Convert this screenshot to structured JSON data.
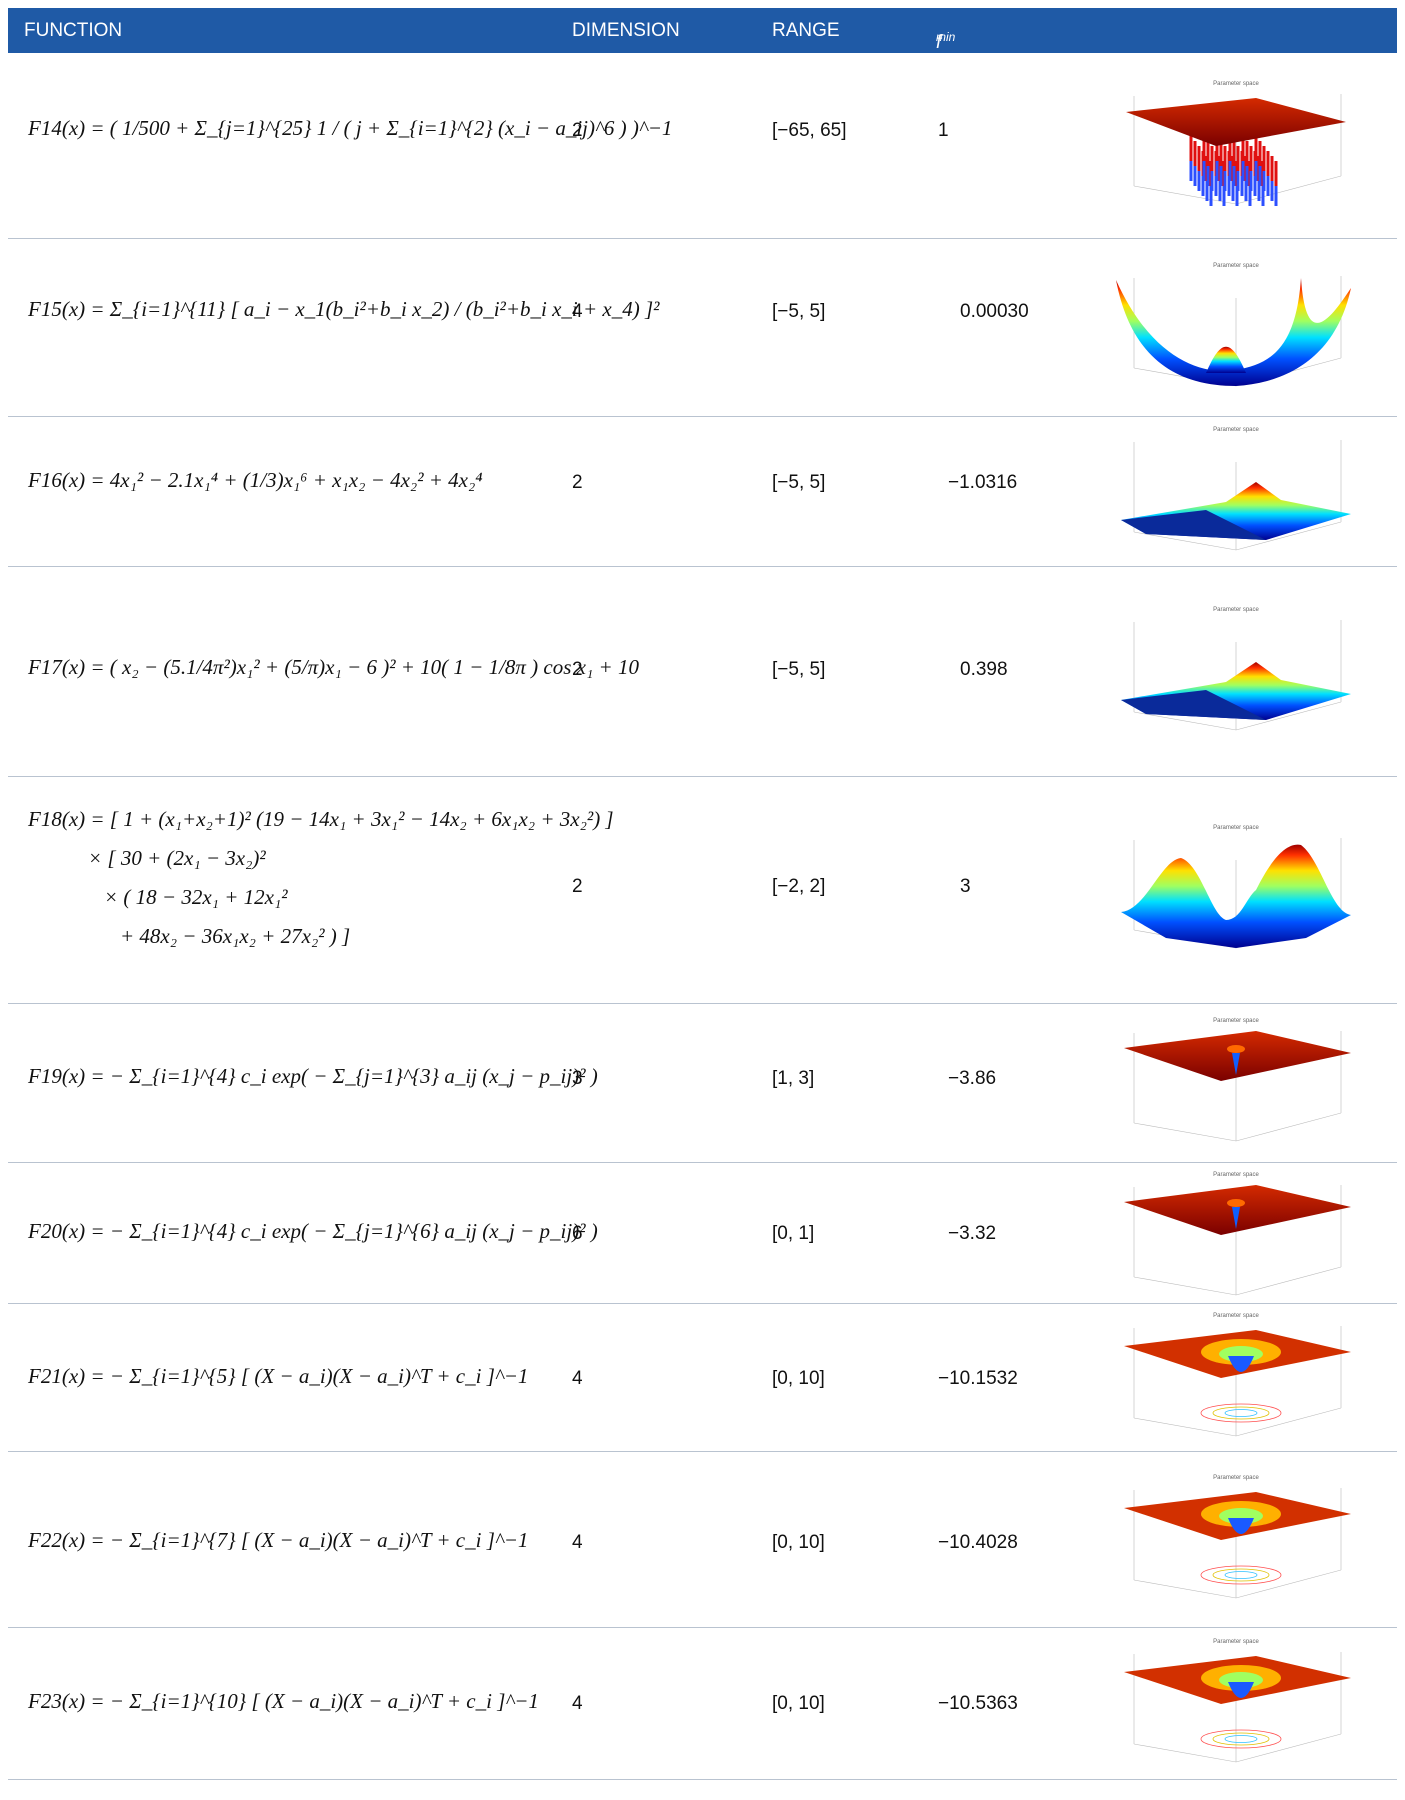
{
  "header": {
    "function": "FUNCTION",
    "dimension": "DIMENSION",
    "range": "RANGE",
    "fmin_base": "f",
    "fmin_sub": "min"
  },
  "plot_title": "Parameter space",
  "rows": [
    {
      "name": "F14(x)",
      "formula": "= ( 1/500 + Σ_{j=1}^{25} 1 / ( j + Σ_{i=1}^{2} (x_i − a_ij)^6 ) )^−1",
      "dimension": "2",
      "range": "[−65, 65]",
      "fmin": "1",
      "plot": "flat-spikes"
    },
    {
      "name": "F15(x)",
      "formula": "= Σ_{i=1}^{11} [ a_i − x_1(b_i²+b_i x_2) / (b_i²+b_i x_i + x_4) ]²",
      "dimension": "4",
      "range": "[−5, 5]",
      "fmin": "0.00030",
      "plot": "bowl"
    },
    {
      "name": "F16(x)",
      "formula": "= 4x₁² − 2.1x₁⁴ + (1/3)x₁⁶ + x₁x₂ − 4x₂² + 4x₂⁴",
      "dimension": "2",
      "range": "[−5, 5]",
      "fmin": "−1.0316",
      "plot": "low-ridge"
    },
    {
      "name": "F17(x)",
      "formula": "= ( x₂ − (5.1/4π²)x₁² + (5/π)x₁ − 6 )² + 10( 1 − 1/8π ) cos x₁ + 10",
      "dimension": "2",
      "range": "[−5, 5]",
      "fmin": "0.398",
      "plot": "low-ridge"
    },
    {
      "name": "F18(x)",
      "formula": "= [ 1 + (x₁+x₂+1)² (19 − 14x₁ + 3x₁² − 14x₂ + 6x₁x₂ + 3x₂²) ]",
      "formula2": "× [ 30 + (2x₁ − 3x₂)²",
      "formula3": "× ( 18 − 32x₁ + 12x₁²",
      "formula4": "+ 48x₂ − 36x₁x₂ + 27x₂² ) ]",
      "dimension": "2",
      "range": "[−2, 2]",
      "fmin": "3",
      "plot": "double-peak"
    },
    {
      "name": "F19(x)",
      "formula": "= − Σ_{i=1}^{4} c_i exp( − Σ_{j=1}^{3} a_ij (x_j − p_ij)² )",
      "dimension": "3",
      "range": "[1, 3]",
      "fmin": "−3.86",
      "plot": "flat-well"
    },
    {
      "name": "F20(x)",
      "formula": "= − Σ_{i=1}^{4} c_i exp( − Σ_{j=1}^{6} a_ij (x_j − p_ij)² )",
      "dimension": "6",
      "range": "[0, 1]",
      "fmin": "−3.32",
      "plot": "flat-well"
    },
    {
      "name": "F21(x)",
      "formula": "= − Σ_{i=1}^{5} [ (X − a_i)(X − a_i)^T + c_i ]^−1",
      "dimension": "4",
      "range": "[0, 10]",
      "fmin": "−10.1532",
      "plot": "basin"
    },
    {
      "name": "F22(x)",
      "formula": "= − Σ_{i=1}^{7} [ (X − a_i)(X − a_i)^T + c_i ]^−1",
      "dimension": "4",
      "range": "[0, 10]",
      "fmin": "−10.4028",
      "plot": "basin"
    },
    {
      "name": "F23(x)",
      "formula": "= − Σ_{i=1}^{10} [ (X − a_i)(X − a_i)^T + c_i ]^−1",
      "dimension": "4",
      "range": "[0, 10]",
      "fmin": "−10.5363",
      "plot": "basin"
    }
  ]
}
